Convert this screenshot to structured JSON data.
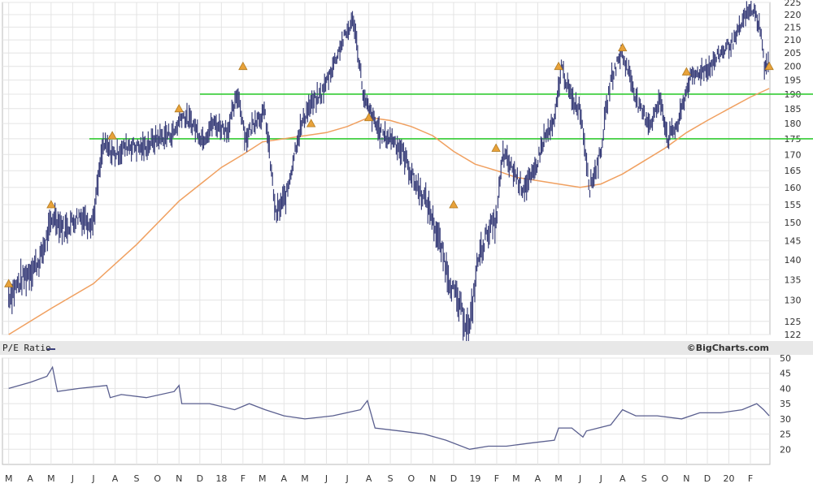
{
  "chart_data": [
    {
      "type": "line",
      "subtype": "ohlc-bar",
      "title": "",
      "price_axis": {
        "min": 122,
        "max": 225,
        "scale": "log",
        "ticks": [
          122,
          125,
          130,
          135,
          140,
          145,
          150,
          155,
          160,
          165,
          170,
          175,
          180,
          185,
          190,
          195,
          200,
          205,
          210,
          215,
          220,
          225
        ]
      },
      "x_labels": [
        "M",
        "A",
        "M",
        "J",
        "J",
        "A",
        "S",
        "O",
        "N",
        "D",
        "18",
        "F",
        "M",
        "A",
        "M",
        "J",
        "J",
        "A",
        "S",
        "O",
        "N",
        "D",
        "19",
        "F",
        "M",
        "A",
        "M",
        "J",
        "J",
        "A",
        "S",
        "O",
        "N",
        "D",
        "20",
        "F"
      ],
      "series": [
        {
          "name": "",
          "kind": "price",
          "color": "#3a3f7a",
          "x": [
            "2017-03-01",
            "2017-03-20",
            "2017-04-15",
            "2017-05-05",
            "2017-05-20",
            "2017-06-10",
            "2017-06-30",
            "2017-07-15",
            "2017-08-01",
            "2017-08-20",
            "2017-09-10",
            "2017-09-30",
            "2017-10-25",
            "2017-11-05",
            "2017-11-20",
            "2017-12-05",
            "2017-12-20",
            "2018-01-10",
            "2018-01-25",
            "2018-02-05",
            "2018-02-20",
            "2018-03-05",
            "2018-03-20",
            "2018-04-05",
            "2018-04-20",
            "2018-05-05",
            "2018-05-25",
            "2018-06-10",
            "2018-06-25",
            "2018-07-10",
            "2018-07-25",
            "2018-08-10",
            "2018-08-20",
            "2018-09-05",
            "2018-09-20",
            "2018-10-05",
            "2018-10-25",
            "2018-11-10",
            "2018-11-25",
            "2018-12-10",
            "2018-12-24",
            "2019-01-05",
            "2019-01-20",
            "2019-01-31",
            "2019-02-10",
            "2019-02-25",
            "2019-03-10",
            "2019-03-25",
            "2019-04-10",
            "2019-04-25",
            "2019-05-05",
            "2019-05-20",
            "2019-06-01",
            "2019-06-15",
            "2019-06-30",
            "2019-07-15",
            "2019-07-30",
            "2019-08-10",
            "2019-08-25",
            "2019-09-10",
            "2019-09-25",
            "2019-10-05",
            "2019-10-20",
            "2019-11-05",
            "2019-11-20",
            "2019-12-05",
            "2019-12-20",
            "2020-01-10",
            "2020-01-25",
            "2020-02-05",
            "2020-02-15",
            "2020-02-21",
            "2020-02-28"
          ],
          "values": [
            131,
            135,
            140,
            152,
            148,
            152,
            150,
            173,
            170,
            173,
            172,
            175,
            177,
            183,
            180,
            175,
            180,
            178,
            190,
            175,
            182,
            183,
            152,
            158,
            175,
            185,
            190,
            200,
            210,
            218,
            188,
            180,
            176,
            175,
            170,
            162,
            155,
            145,
            135,
            128,
            123,
            140,
            148,
            150,
            170,
            165,
            160,
            163,
            175,
            180,
            200,
            188,
            185,
            160,
            170,
            195,
            205,
            198,
            185,
            180,
            188,
            175,
            180,
            195,
            198,
            200,
            205,
            210,
            220,
            222,
            215,
            200,
            200
          ]
        },
        {
          "name": "",
          "kind": "moving-average",
          "color": "#f0a060",
          "x": [
            "2017-03-01",
            "2017-05-01",
            "2017-07-01",
            "2017-09-01",
            "2017-11-01",
            "2018-01-01",
            "2018-02-01",
            "2018-03-01",
            "2018-04-01",
            "2018-05-01",
            "2018-06-01",
            "2018-07-01",
            "2018-08-01",
            "2018-09-01",
            "2018-10-01",
            "2018-11-01",
            "2018-12-01",
            "2019-01-01",
            "2019-02-01",
            "2019-03-01",
            "2019-04-01",
            "2019-05-01",
            "2019-06-01",
            "2019-07-01",
            "2019-08-01",
            "2019-09-01",
            "2019-10-01",
            "2019-11-01",
            "2019-12-01",
            "2020-01-01",
            "2020-02-01",
            "2020-02-28"
          ],
          "values": [
            122,
            128,
            134,
            144,
            156,
            166,
            170,
            174,
            175,
            176,
            177,
            179,
            182,
            181,
            179,
            176,
            171,
            167,
            165,
            163,
            162,
            161,
            160,
            161,
            164,
            168,
            172,
            177,
            181,
            185,
            189,
            192
          ]
        }
      ],
      "horizontal_lines": [
        {
          "value": 190,
          "color": "#33cc33",
          "from": "2017-12-01"
        },
        {
          "value": 175,
          "color": "#33cc33",
          "from": "2017-06-25"
        }
      ],
      "markers": [
        {
          "x": "2017-03-01",
          "y": 134,
          "color": "#e8a23a"
        },
        {
          "x": "2017-05-01",
          "y": 155,
          "color": "#e8a23a"
        },
        {
          "x": "2017-07-28",
          "y": 176,
          "color": "#e8a23a"
        },
        {
          "x": "2017-11-01",
          "y": 185,
          "color": "#e8a23a"
        },
        {
          "x": "2018-02-01",
          "y": 200,
          "color": "#e8a23a"
        },
        {
          "x": "2018-05-10",
          "y": 180,
          "color": "#e8a23a"
        },
        {
          "x": "2018-08-01",
          "y": 182,
          "color": "#e8a23a"
        },
        {
          "x": "2018-12-01",
          "y": 155,
          "color": "#e8a23a"
        },
        {
          "x": "2019-01-31",
          "y": 172,
          "color": "#e8a23a"
        },
        {
          "x": "2019-05-01",
          "y": 200,
          "color": "#e8a23a"
        },
        {
          "x": "2019-08-01",
          "y": 207,
          "color": "#e8a23a"
        },
        {
          "x": "2019-11-01",
          "y": 198,
          "color": "#e8a23a"
        },
        {
          "x": "2020-02-28",
          "y": 200,
          "color": "#e8a23a"
        }
      ],
      "grid": true
    },
    {
      "type": "line",
      "title": "",
      "legend_label": "P/E Ratio",
      "watermark": "©BigCharts.com",
      "y_axis": {
        "min": 15,
        "max": 50,
        "ticks": [
          20,
          25,
          30,
          35,
          40,
          45,
          50
        ]
      },
      "series": [
        {
          "name": "P/E Ratio",
          "color": "#5a5f8f",
          "x": [
            "2017-03-01",
            "2017-04-01",
            "2017-04-25",
            "2017-05-03",
            "2017-05-10",
            "2017-06-10",
            "2017-07-20",
            "2017-07-25",
            "2017-08-10",
            "2017-09-15",
            "2017-10-25",
            "2017-11-01",
            "2017-11-05",
            "2017-12-15",
            "2018-01-20",
            "2018-02-10",
            "2018-03-05",
            "2018-04-01",
            "2018-05-01",
            "2018-06-10",
            "2018-07-20",
            "2018-07-30",
            "2018-08-10",
            "2018-09-15",
            "2018-10-20",
            "2018-11-20",
            "2018-12-24",
            "2019-01-20",
            "2019-02-15",
            "2019-03-20",
            "2019-04-25",
            "2019-05-01",
            "2019-05-20",
            "2019-06-05",
            "2019-06-10",
            "2019-07-15",
            "2019-08-01",
            "2019-08-20",
            "2019-09-20",
            "2019-10-25",
            "2019-11-20",
            "2019-12-20",
            "2020-01-20",
            "2020-02-10",
            "2020-02-20",
            "2020-02-28"
          ],
          "values": [
            40,
            42,
            44,
            47,
            39,
            40,
            41,
            37,
            38,
            37,
            39,
            41,
            35,
            35,
            33,
            35,
            33,
            31,
            30,
            31,
            33,
            36,
            27,
            26,
            25,
            23,
            20,
            21,
            21,
            22,
            23,
            27,
            27,
            24,
            26,
            28,
            33,
            31,
            31,
            30,
            32,
            32,
            33,
            35,
            33,
            31
          ]
        }
      ],
      "grid": true
    }
  ]
}
